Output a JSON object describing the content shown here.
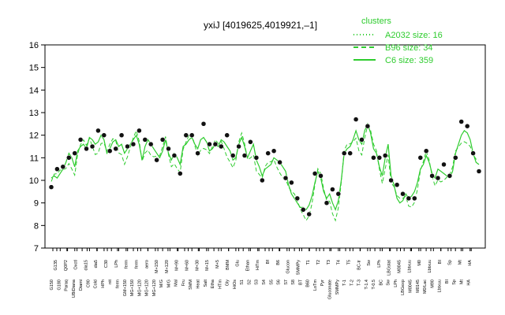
{
  "chart_data": {
    "type": "line",
    "title": "yxiJ [4019625,4019921,–1]",
    "ylim": [
      7,
      16
    ],
    "yticks": [
      7,
      8,
      9,
      10,
      11,
      12,
      13,
      14,
      15,
      16
    ],
    "legend": {
      "title": "clusters",
      "placement": "top-right",
      "entries": [
        {
          "label": "A2032 size: 16",
          "style": "dotted"
        },
        {
          "label": "B96 size: 34",
          "style": "dashed"
        },
        {
          "label": "C6 size: 359",
          "style": "solid"
        }
      ]
    },
    "series_color": "#2ecc2e",
    "x_labels_row1": [
      "G150",
      "G180",
      "Paraq",
      "UBiDiana",
      "Diami",
      "C90",
      "Cold",
      "HPh",
      "nit",
      "ferm",
      "GM+150",
      "MG+150",
      "MG+120",
      "MG+120",
      "MG+120",
      "M/G",
      "M/G",
      "Mal",
      "Fru",
      "SMM",
      "Heat",
      "Salt",
      "Etha",
      "HTm",
      "Gly",
      "HiOs",
      "S1",
      "S2",
      "S3",
      "S4",
      "S5",
      "S6",
      "S7",
      "S8",
      "BT",
      "B60",
      "LoTm",
      "Pyr",
      "Gluconate",
      "SMMPy",
      "T-1",
      "T-2",
      "T-3",
      "T-1.4",
      "T-0.5",
      "BC",
      "Sw",
      "LPh",
      "LBGexp",
      "M0045",
      "M0145",
      "M0/Lac",
      "M90",
      "Lbtxuu",
      "BI",
      "Sp",
      "Mt",
      "HA"
    ],
    "x_labels_row2": [
      "G135",
      "Q0P2",
      "Oxctl",
      "dia15",
      "dia5",
      "C30",
      "LPh",
      "ferm",
      "ferm",
      "aero",
      "M+150",
      "M+120",
      "M+90",
      "M+60",
      "M+30",
      "M+15",
      "M+5",
      "BMM",
      "Glu",
      "Ethan",
      "HiTm",
      "Bf",
      "B6",
      "Glucon",
      "SMMPy",
      "T1",
      "T2",
      "T3",
      "T4",
      "T5",
      "BC-tr",
      "Sw",
      "LPh",
      "LBGstat",
      "M0045",
      "Lbtxuu",
      "M0",
      "Lbtxuu",
      "BI",
      "Sp",
      "Mt",
      "HA"
    ],
    "c6_values": [
      10.1,
      10.2,
      10.1,
      10.3,
      10.5,
      10.8,
      11.2,
      11.0,
      10.6,
      11.3,
      11.5,
      11.6,
      11.4,
      11.9,
      11.8,
      11.6,
      11.7,
      12.0,
      11.8,
      11.2,
      11.4,
      11.7,
      11.8,
      11.5,
      11.6,
      11.2,
      11.4,
      11.6,
      11.8,
      12.0,
      11.6,
      10.9,
      11.5,
      11.8,
      11.6,
      11.4,
      11.2,
      11.0,
      11.3,
      11.8,
      11.2,
      10.9,
      11.2,
      11.0,
      10.7,
      11.5,
      11.6,
      11.8,
      11.9,
      11.6,
      11.4,
      11.8,
      11.9,
      11.7,
      11.3,
      11.4,
      11.6,
      11.5,
      11.8,
      11.7,
      11.5,
      11.3,
      10.9,
      11.0,
      11.6,
      11.9,
      11.5,
      11.0,
      11.3,
      11.6,
      10.9,
      10.6,
      10.2,
      10.5,
      10.6,
      10.7,
      11.0,
      10.9,
      10.8,
      10.6,
      10.4,
      9.8,
      9.4,
      9.2,
      9.0,
      8.8,
      8.8,
      8.7,
      8.9,
      9.3,
      9.9,
      10.4,
      10.1,
      9.5,
      9.2,
      9.4,
      9.0,
      8.7,
      9.1,
      10.0,
      11.2,
      11.4,
      11.5,
      11.8,
      12.2,
      11.8,
      11.6,
      12.2,
      12.5,
      12.1,
      11.4,
      11.2,
      10.6,
      10.2,
      11.0,
      11.6,
      10.2,
      9.8,
      9.2,
      9.0,
      9.1,
      9.4,
      9.2,
      9.3,
      9.5,
      9.9,
      10.5,
      10.7,
      11.1,
      10.8,
      10.3,
      10.1,
      10.5,
      10.4,
      10.3,
      10.2,
      10.1,
      10.4,
      11.2,
      11.6,
      12.0,
      12.2,
      12.1,
      11.8,
      11.2,
      10.8,
      10.7
    ]
  },
  "clusters_legend_title": "clusters"
}
